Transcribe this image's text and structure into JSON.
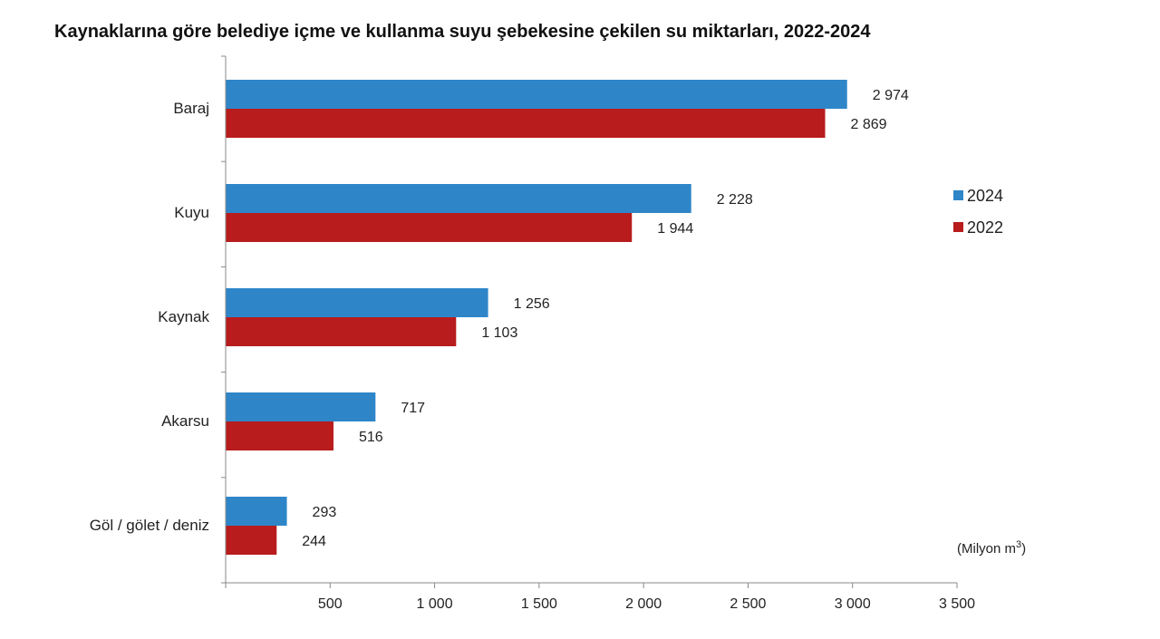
{
  "chart_data": {
    "type": "bar",
    "orientation": "horizontal",
    "title": "Kaynaklarına göre belediye içme ve kullanma suyu şebekesine çekilen su miktarları, 2022-2024",
    "categories": [
      "Baraj",
      "Kuyu",
      "Kaynak",
      "Akarsu",
      "Göl / gölet / deniz"
    ],
    "series": [
      {
        "name": "2024",
        "color": "#2e86c9",
        "values": [
          2974,
          2228,
          1256,
          717,
          293
        ],
        "labels": [
          "2 974",
          "2 228",
          "1 256",
          "717",
          "293"
        ]
      },
      {
        "name": "2022",
        "color": "#b81c1c",
        "values": [
          2869,
          1944,
          1103,
          516,
          244
        ],
        "labels": [
          "2 869",
          "1 944",
          "1 103",
          "516",
          "244"
        ]
      }
    ],
    "xlim": [
      0,
      3500
    ],
    "ticks": [
      500,
      1000,
      1500,
      2000,
      2500,
      3000,
      3500
    ],
    "tick_labels": [
      "500",
      "1 000",
      "1 500",
      "2 000",
      "2 500",
      "3 000",
      "3 500"
    ],
    "unit": "(Milyon m",
    "unit_superscript": "3",
    "unit_close": ")",
    "legend_position": "right",
    "grid": false
  }
}
